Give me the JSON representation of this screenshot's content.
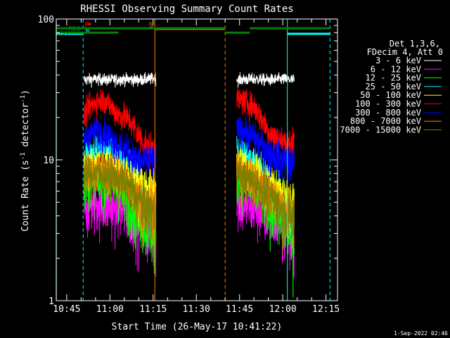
{
  "chart_data": {
    "type": "line",
    "title": "RHESSI Observing Summary Count Rates",
    "xlabel": "Start Time (26-May-17 10:41:22)",
    "ylabel": "Count Rate (s⁻¹ detector⁻¹)",
    "ylabel_main": "Count Rate (s",
    "ylabel_sup1": "-1",
    "ylabel_mid": " detector",
    "ylabel_sup2": "-1",
    "ylabel_end": ")",
    "yscale": "log",
    "ylim": [
      1,
      100
    ],
    "xlim_min": [
      41.37,
      139
    ],
    "x_ticks": [
      {
        "m": 45,
        "label": "10:45"
      },
      {
        "m": 60,
        "label": "11:00"
      },
      {
        "m": 75,
        "label": "11:15"
      },
      {
        "m": 90,
        "label": "11:30"
      },
      {
        "m": 105,
        "label": "11:45"
      },
      {
        "m": 120,
        "label": "12:00"
      },
      {
        "m": 135,
        "label": "12:15"
      }
    ],
    "y_ticks": [
      {
        "v": 1,
        "label": "1"
      },
      {
        "v": 10,
        "label": "10"
      },
      {
        "v": 100,
        "label": "100"
      }
    ],
    "legend": {
      "position": "right",
      "header": [
        "Det 1,3,6,",
        "FDecim 4, Att 0"
      ],
      "entries": [
        {
          "label": "3 - 6 keV",
          "color": "#ffffff"
        },
        {
          "label": "6 - 12 keV",
          "color": "#ff00ff"
        },
        {
          "label": "12 - 25 keV",
          "color": "#00ff00"
        },
        {
          "label": "25 - 50 keV",
          "color": "#00ffff"
        },
        {
          "label": "50 - 100 keV",
          "color": "#ffff00"
        },
        {
          "label": "100 - 300 keV",
          "color": "#ff0000"
        },
        {
          "label": "300 - 800 keV",
          "color": "#0000ff"
        },
        {
          "label": "800 - 7000 keV",
          "color": "#ff8000"
        },
        {
          "label": "7000 - 15000 keV",
          "color": "#808000"
        }
      ]
    },
    "series": [
      {
        "name": "3 - 6 keV",
        "color": "#ffffff",
        "segments": [
          {
            "x": [
              51,
              55,
              60,
              65,
              70,
              76
            ],
            "y": [
              37,
              37.5,
              37,
              37.5,
              37,
              38
            ]
          },
          {
            "x": [
              104,
              110,
              115,
              120,
              124
            ],
            "y": [
              37,
              37.5,
              37,
              37.5,
              37
            ]
          }
        ]
      },
      {
        "name": "6 - 12 keV",
        "color": "#ff00ff",
        "segments": [
          {
            "x": [
              51,
              54,
              57,
              60,
              64,
              68,
              72,
              76
            ],
            "y": [
              4.7,
              4.8,
              4.9,
              4.7,
              4.4,
              4.0,
              3.5,
              3.0
            ]
          },
          {
            "x": [
              104,
              107,
              110,
              113,
              116,
              119,
              122,
              124
            ],
            "y": [
              5.0,
              4.8,
              4.6,
              4.3,
              4.0,
              3.6,
              3.0,
              2.6
            ]
          }
        ]
      },
      {
        "name": "12 - 25 keV",
        "color": "#00ff00",
        "segments": [
          {
            "x": [
              51,
              54,
              57,
              60,
              64,
              68,
              72,
              76
            ],
            "y": [
              6.8,
              7.0,
              7.0,
              6.6,
              5.8,
              4.6,
              3.6,
              3.0
            ]
          },
          {
            "x": [
              104,
              107,
              110,
              113,
              116,
              119,
              122,
              124
            ],
            "y": [
              7.2,
              6.8,
              6.2,
              5.4,
              4.6,
              3.8,
              3.2,
              2.8
            ]
          }
        ]
      },
      {
        "name": "25 - 50 keV",
        "color": "#00ffff",
        "segments": [
          {
            "x": [
              51,
              54,
              57,
              60,
              64,
              68,
              72,
              76
            ],
            "y": [
              10.5,
              11.8,
              12.5,
              12.0,
              10.5,
              8.5,
              6.4,
              5.0
            ]
          },
          {
            "x": [
              104,
              107,
              110,
              113,
              116,
              119,
              122,
              124
            ],
            "y": [
              12.0,
              11.0,
              9.6,
              8.2,
              6.8,
              5.5,
              4.4,
              3.8
            ]
          }
        ]
      },
      {
        "name": "50 - 100 keV",
        "color": "#ffff00",
        "segments": [
          {
            "x": [
              51,
              54,
              57,
              60,
              64,
              68,
              72,
              76
            ],
            "y": [
              8.8,
              9.4,
              9.6,
              9.3,
              8.6,
              7.6,
              6.6,
              5.8
            ]
          },
          {
            "x": [
              104,
              107,
              110,
              113,
              116,
              119,
              122,
              124
            ],
            "y": [
              9.4,
              9.0,
              8.2,
              7.4,
              6.6,
              5.8,
              5.2,
              4.8
            ]
          }
        ]
      },
      {
        "name": "100 - 300 keV",
        "color": "#ff0000",
        "segments": [
          {
            "x": [
              51,
              53,
              55,
              57,
              59,
              61,
              63,
              65,
              67,
              70,
              72,
              74,
              76
            ],
            "y": [
              21,
              24,
              26,
              27,
              26,
              23,
              21,
              20.5,
              19,
              15,
              13,
              12,
              12
            ]
          },
          {
            "x": [
              104,
              106,
              108,
              110,
              112,
              114,
              116,
              118,
              120,
              122,
              124
            ],
            "y": [
              27,
              26.5,
              25.5,
              24,
              21,
              17.5,
              15,
              14,
              13.5,
              13.5,
              13
            ]
          }
        ]
      },
      {
        "name": "300 - 800 keV",
        "color": "#0000ff",
        "segments": [
          {
            "x": [
              51,
              53,
              55,
              57,
              59,
              61,
              63,
              65,
              67,
              69,
              71,
              73,
              76
            ],
            "y": [
              14,
              15.5,
              16,
              16,
              15,
              14,
              12.5,
              12,
              11,
              10,
              9.6,
              9.8,
              10
            ]
          },
          {
            "x": [
              104,
              106,
              108,
              110,
              112,
              114,
              116,
              118,
              120,
              122,
              124
            ],
            "y": [
              16.5,
              16.3,
              15.5,
              14.5,
              13,
              12,
              11,
              10.5,
              10,
              9.5,
              9.2
            ]
          }
        ]
      },
      {
        "name": "800 - 7000 keV",
        "color": "#ff8000",
        "segments": [
          {
            "x": [
              51,
              54,
              57,
              60,
              63,
              66,
              69,
              72,
              76
            ],
            "y": [
              8.0,
              8.4,
              8.6,
              8.3,
              7.8,
              7.0,
              6.0,
              5.0,
              4.5
            ]
          },
          {
            "x": [
              104,
              107,
              110,
              113,
              116,
              119,
              122,
              124
            ],
            "y": [
              8.5,
              8.0,
              7.4,
              6.6,
              5.8,
              5.0,
              4.4,
              4.0
            ]
          }
        ]
      },
      {
        "name": "7000 - 15000 keV",
        "color": "#808000",
        "segments": [
          {
            "x": [
              51,
              54,
              57,
              60,
              63,
              66,
              69,
              72,
              76
            ],
            "y": [
              7.8,
              8.0,
              8.1,
              7.7,
              7.2,
              6.5,
              5.7,
              4.8,
              4.3
            ]
          },
          {
            "x": [
              104,
              107,
              110,
              113,
              116,
              119,
              122,
              124
            ],
            "y": [
              8.0,
              7.6,
              7.0,
              6.2,
              5.4,
              4.7,
              4.1,
              3.8
            ]
          }
        ]
      }
    ],
    "vertical_markers": [
      {
        "m": 41.4,
        "color": "#00ffff",
        "style": "solid"
      },
      {
        "m": 50.7,
        "color": "#00ffff",
        "style": "dashed"
      },
      {
        "m": 75.6,
        "color": "#ff8000",
        "style": "solid"
      },
      {
        "m": 100.0,
        "color": "#ff8000",
        "style": "dashed"
      },
      {
        "m": 121.6,
        "color": "#00ffff",
        "style": "solid"
      },
      {
        "m": 136.4,
        "color": "#00ffff",
        "style": "dashed"
      }
    ],
    "flag_bars": [
      {
        "label": "N",
        "color": "#00ffff",
        "y": 100,
        "ranges": [
          [
            41.37,
            50.7
          ],
          [
            121.6,
            136.4
          ]
        ],
        "label_m": 51.5
      },
      {
        "label": "S",
        "color": "#ff8000",
        "y": 100,
        "ranges": [
          [
            75.6,
            100.0
          ]
        ],
        "label_m": 73.5
      },
      {
        "label": "F",
        "color": "#ff0000",
        "y": 92,
        "ranges": [
          [
            52.2,
            53.5
          ]
        ],
        "label_m": 51.2
      },
      {
        "label": "RDO",
        "color": "#008000",
        "y": 86,
        "ranges": [
          [
            41.37,
            100.0
          ],
          [
            108.5,
            136.4
          ]
        ],
        "label_m": 45.5
      },
      {
        "label": "RD6",
        "color": "#008000",
        "y": 80,
        "ranges": [
          [
            45.0,
            63.0
          ],
          [
            100.0,
            108.5
          ]
        ],
        "label_m": 41.0
      }
    ]
  },
  "footer": {
    "timestamp": "1-Sep-2022 02:46"
  }
}
